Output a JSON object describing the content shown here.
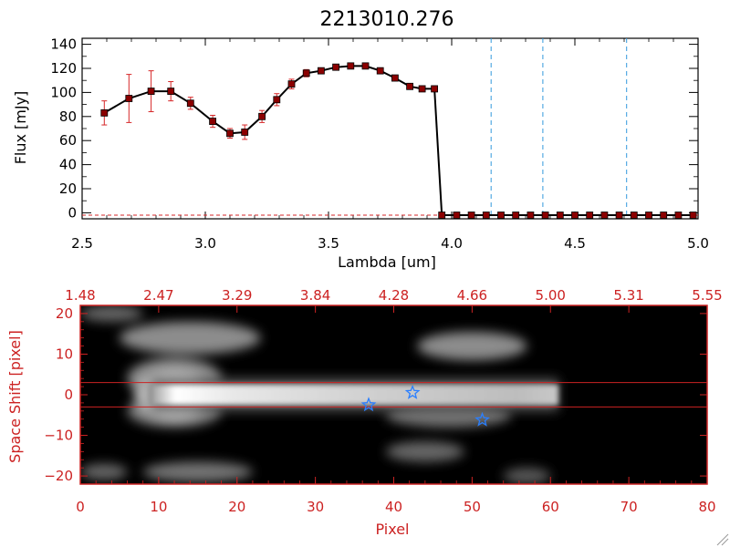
{
  "colors": {
    "bg": "#ffffff",
    "axis_black": "#000000",
    "axis_red": "#cc2222",
    "spectrum_line": "#000000",
    "marker_fill": "#8b0000",
    "error_bar": "#d62728",
    "vline_blue": "#3399dd",
    "star_blue": "#2a7fff",
    "image_bg": "#000000"
  },
  "chart_data": [
    {
      "type": "line",
      "title": "2213010.276",
      "xlabel": "Lambda [um]",
      "ylabel": "Flux [mJy]",
      "xlim": [
        2.5,
        5.0
      ],
      "ylim": [
        -5,
        145
      ],
      "xticks": [
        2.5,
        3.0,
        3.5,
        4.0,
        4.5,
        5.0
      ],
      "xtick_labels": [
        "2.5",
        "3.0",
        "3.5",
        "4.0",
        "4.5",
        "5.0"
      ],
      "yticks": [
        0,
        20,
        40,
        60,
        80,
        100,
        120,
        140
      ],
      "ytick_labels": [
        "0",
        "20",
        "40",
        "60",
        "80",
        "100",
        "120",
        "140"
      ],
      "grid": false,
      "series": [
        {
          "x": [
            2.59,
            2.69,
            2.78,
            2.86,
            2.94,
            3.03,
            3.1,
            3.16,
            3.23,
            3.29,
            3.35,
            3.41,
            3.47,
            3.53,
            3.59,
            3.65,
            3.71,
            3.77,
            3.83,
            3.88,
            3.93,
            3.96,
            4.02,
            4.08,
            4.14,
            4.2,
            4.26,
            4.32,
            4.38,
            4.44,
            4.5,
            4.56,
            4.62,
            4.68,
            4.74,
            4.8,
            4.86,
            4.92,
            4.98
          ],
          "y": [
            83,
            95,
            101,
            101,
            91,
            76,
            66,
            67,
            80,
            94,
            107,
            116,
            118,
            121,
            122,
            122,
            118,
            112,
            105,
            103,
            103,
            -2,
            -2,
            -2,
            -2,
            -2,
            -2,
            -2,
            -2,
            -2,
            -2,
            -2,
            -2,
            -2,
            -2,
            -2,
            -2,
            -2,
            -2
          ],
          "yerr": [
            10,
            20,
            17,
            8,
            5,
            5,
            4,
            6,
            5,
            5,
            4,
            3,
            2,
            2,
            2,
            2,
            2,
            2,
            2,
            2,
            2,
            0,
            0,
            0,
            0,
            0,
            0,
            0,
            0,
            0,
            0,
            0,
            0,
            0,
            0,
            0,
            0,
            0,
            0
          ]
        }
      ],
      "vlines": [
        4.16,
        4.37,
        4.71
      ],
      "hline": -2
    },
    {
      "type": "heatmap",
      "xlabel": "Pixel",
      "ylabel": "Space Shift [pixel]",
      "xlim": [
        0,
        80
      ],
      "ylim": [
        -22,
        22
      ],
      "xticks": [
        0,
        10,
        20,
        30,
        40,
        50,
        60,
        70,
        80
      ],
      "xtick_labels": [
        "0",
        "10",
        "20",
        "30",
        "40",
        "50",
        "60",
        "70",
        "80"
      ],
      "yticks": [
        -20,
        -10,
        0,
        10,
        20
      ],
      "ytick_labels": [
        "−20",
        "−10",
        "0",
        "10",
        "20"
      ],
      "top_xtick_labels": [
        "1.48",
        "2.47",
        "3.29",
        "3.84",
        "4.28",
        "4.66",
        "5.00",
        "5.31",
        "5.55"
      ],
      "trace": {
        "x_start": 9,
        "x_end": 61,
        "center_y": 0,
        "half_width": 2.5,
        "peak_x": 12
      },
      "blobs": [
        {
          "x": 14,
          "y": 14,
          "rx": 9,
          "ry": 4,
          "level": 0.55
        },
        {
          "x": 12,
          "y": 4,
          "rx": 6,
          "ry": 5,
          "level": 0.55
        },
        {
          "x": 12,
          "y": -4,
          "rx": 6,
          "ry": 4,
          "level": 0.5
        },
        {
          "x": 50,
          "y": 12,
          "rx": 7,
          "ry": 3.5,
          "level": 0.55
        },
        {
          "x": 47,
          "y": -5,
          "rx": 8,
          "ry": 3,
          "level": 0.45
        },
        {
          "x": 44,
          "y": -14,
          "rx": 5,
          "ry": 2.5,
          "level": 0.4
        },
        {
          "x": 15,
          "y": -19,
          "rx": 7,
          "ry": 2.5,
          "level": 0.45
        },
        {
          "x": 4,
          "y": 20,
          "rx": 4,
          "ry": 2,
          "level": 0.4
        },
        {
          "x": 3,
          "y": -19,
          "rx": 3,
          "ry": 2,
          "level": 0.4
        },
        {
          "x": 57,
          "y": -20,
          "rx": 3,
          "ry": 2,
          "level": 0.35
        }
      ],
      "stars": [
        {
          "x": 36.8,
          "y": -2.5
        },
        {
          "x": 42.4,
          "y": 0.5
        },
        {
          "x": 51.3,
          "y": -6.2
        }
      ],
      "hlines": [
        3,
        -3
      ]
    }
  ]
}
